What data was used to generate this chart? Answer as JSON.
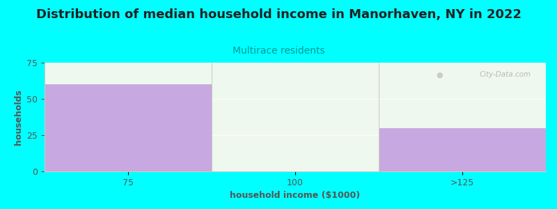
{
  "title": "Distribution of median household income in Manorhaven, NY in 2022",
  "subtitle": "Multirace residents",
  "xlabel": "household income ($1000)",
  "ylabel": "households",
  "categories": [
    "75",
    "100",
    ">125"
  ],
  "values": [
    60,
    0,
    30
  ],
  "bar_color": "#c8a8e0",
  "plot_bg_top": "#e8f5e8",
  "plot_bg_bottom": "#f8fff8",
  "background_color": "#00ffff",
  "ylim": [
    0,
    75
  ],
  "yticks": [
    0,
    25,
    50,
    75
  ],
  "title_fontsize": 13,
  "subtitle_fontsize": 10,
  "subtitle_color": "#009999",
  "axis_label_fontsize": 9,
  "tick_fontsize": 9,
  "label_color": "#555555",
  "watermark": "City-Data.com"
}
